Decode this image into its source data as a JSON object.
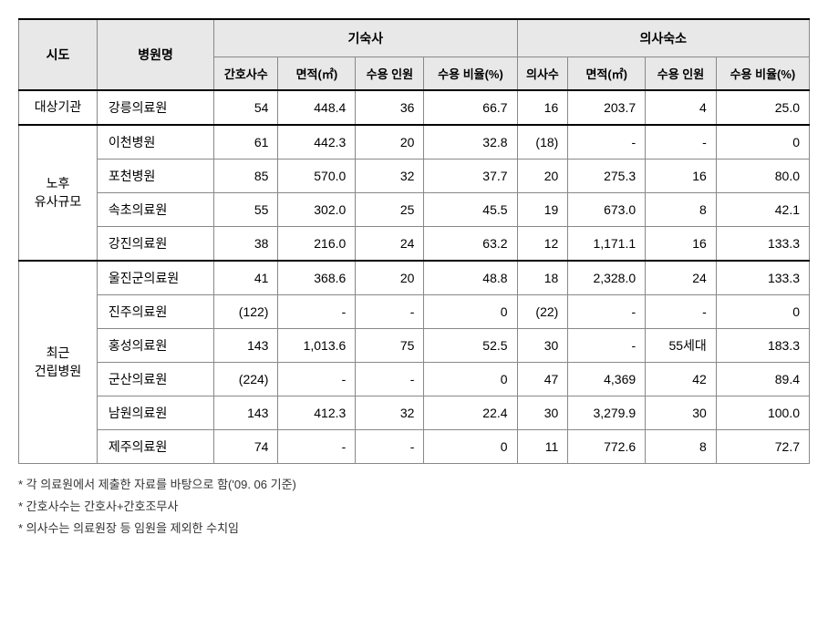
{
  "headers": {
    "sido": "시도",
    "hospital": "병원명",
    "dorm_group": "기숙사",
    "doctor_group": "의사숙소",
    "nurse_count": "간호사수",
    "area": "면적(㎡)",
    "capacity": "수용\n인원",
    "ratio": "수용\n비율(%)",
    "doctor_count": "의사수"
  },
  "categories": [
    {
      "label": "대상기관",
      "rows": [
        {
          "hospital": "강릉의료원",
          "nurse": "54",
          "d_area": "448.4",
          "d_cap": "36",
          "d_ratio": "66.7",
          "doc": "16",
          "doc_area": "203.7",
          "doc_cap": "4",
          "doc_ratio": "25.0"
        }
      ]
    },
    {
      "label": "노후\n유사규모",
      "rows": [
        {
          "hospital": "이천병원",
          "nurse": "61",
          "d_area": "442.3",
          "d_cap": "20",
          "d_ratio": "32.8",
          "doc": "(18)",
          "doc_area": "-",
          "doc_cap": "-",
          "doc_ratio": "0"
        },
        {
          "hospital": "포천병원",
          "nurse": "85",
          "d_area": "570.0",
          "d_cap": "32",
          "d_ratio": "37.7",
          "doc": "20",
          "doc_area": "275.3",
          "doc_cap": "16",
          "doc_ratio": "80.0"
        },
        {
          "hospital": "속초의료원",
          "nurse": "55",
          "d_area": "302.0",
          "d_cap": "25",
          "d_ratio": "45.5",
          "doc": "19",
          "doc_area": "673.0",
          "doc_cap": "8",
          "doc_ratio": "42.1"
        },
        {
          "hospital": "강진의료원",
          "nurse": "38",
          "d_area": "216.0",
          "d_cap": "24",
          "d_ratio": "63.2",
          "doc": "12",
          "doc_area": "1,171.1",
          "doc_cap": "16",
          "doc_ratio": "133.3"
        }
      ]
    },
    {
      "label": "최근\n건립병원",
      "rows": [
        {
          "hospital": "울진군의료원",
          "nurse": "41",
          "d_area": "368.6",
          "d_cap": "20",
          "d_ratio": "48.8",
          "doc": "18",
          "doc_area": "2,328.0",
          "doc_cap": "24",
          "doc_ratio": "133.3"
        },
        {
          "hospital": "진주의료원",
          "nurse": "(122)",
          "d_area": "-",
          "d_cap": "-",
          "d_ratio": "0",
          "doc": "(22)",
          "doc_area": "-",
          "doc_cap": "-",
          "doc_ratio": "0"
        },
        {
          "hospital": "홍성의료원",
          "nurse": "143",
          "d_area": "1,013.6",
          "d_cap": "75",
          "d_ratio": "52.5",
          "doc": "30",
          "doc_area": "-",
          "doc_cap": "55세대",
          "doc_ratio": "183.3"
        },
        {
          "hospital": "군산의료원",
          "nurse": "(224)",
          "d_area": "-",
          "d_cap": "-",
          "d_ratio": "0",
          "doc": "47",
          "doc_area": "4,369",
          "doc_cap": "42",
          "doc_ratio": "89.4"
        },
        {
          "hospital": "남원의료원",
          "nurse": "143",
          "d_area": "412.3",
          "d_cap": "32",
          "d_ratio": "22.4",
          "doc": "30",
          "doc_area": "3,279.9",
          "doc_cap": "30",
          "doc_ratio": "100.0"
        },
        {
          "hospital": "제주의료원",
          "nurse": "74",
          "d_area": "-",
          "d_cap": "-",
          "d_ratio": "0",
          "doc": "11",
          "doc_area": "772.6",
          "doc_cap": "8",
          "doc_ratio": "72.7"
        }
      ]
    }
  ],
  "footnotes": [
    "* 각 의료원에서 제출한 자료를 바탕으로 함('09. 06 기준)",
    "* 간호사수는 간호사+간호조무사",
    "* 의사수는 의료원장 등 임원을 제외한 수치임"
  ]
}
